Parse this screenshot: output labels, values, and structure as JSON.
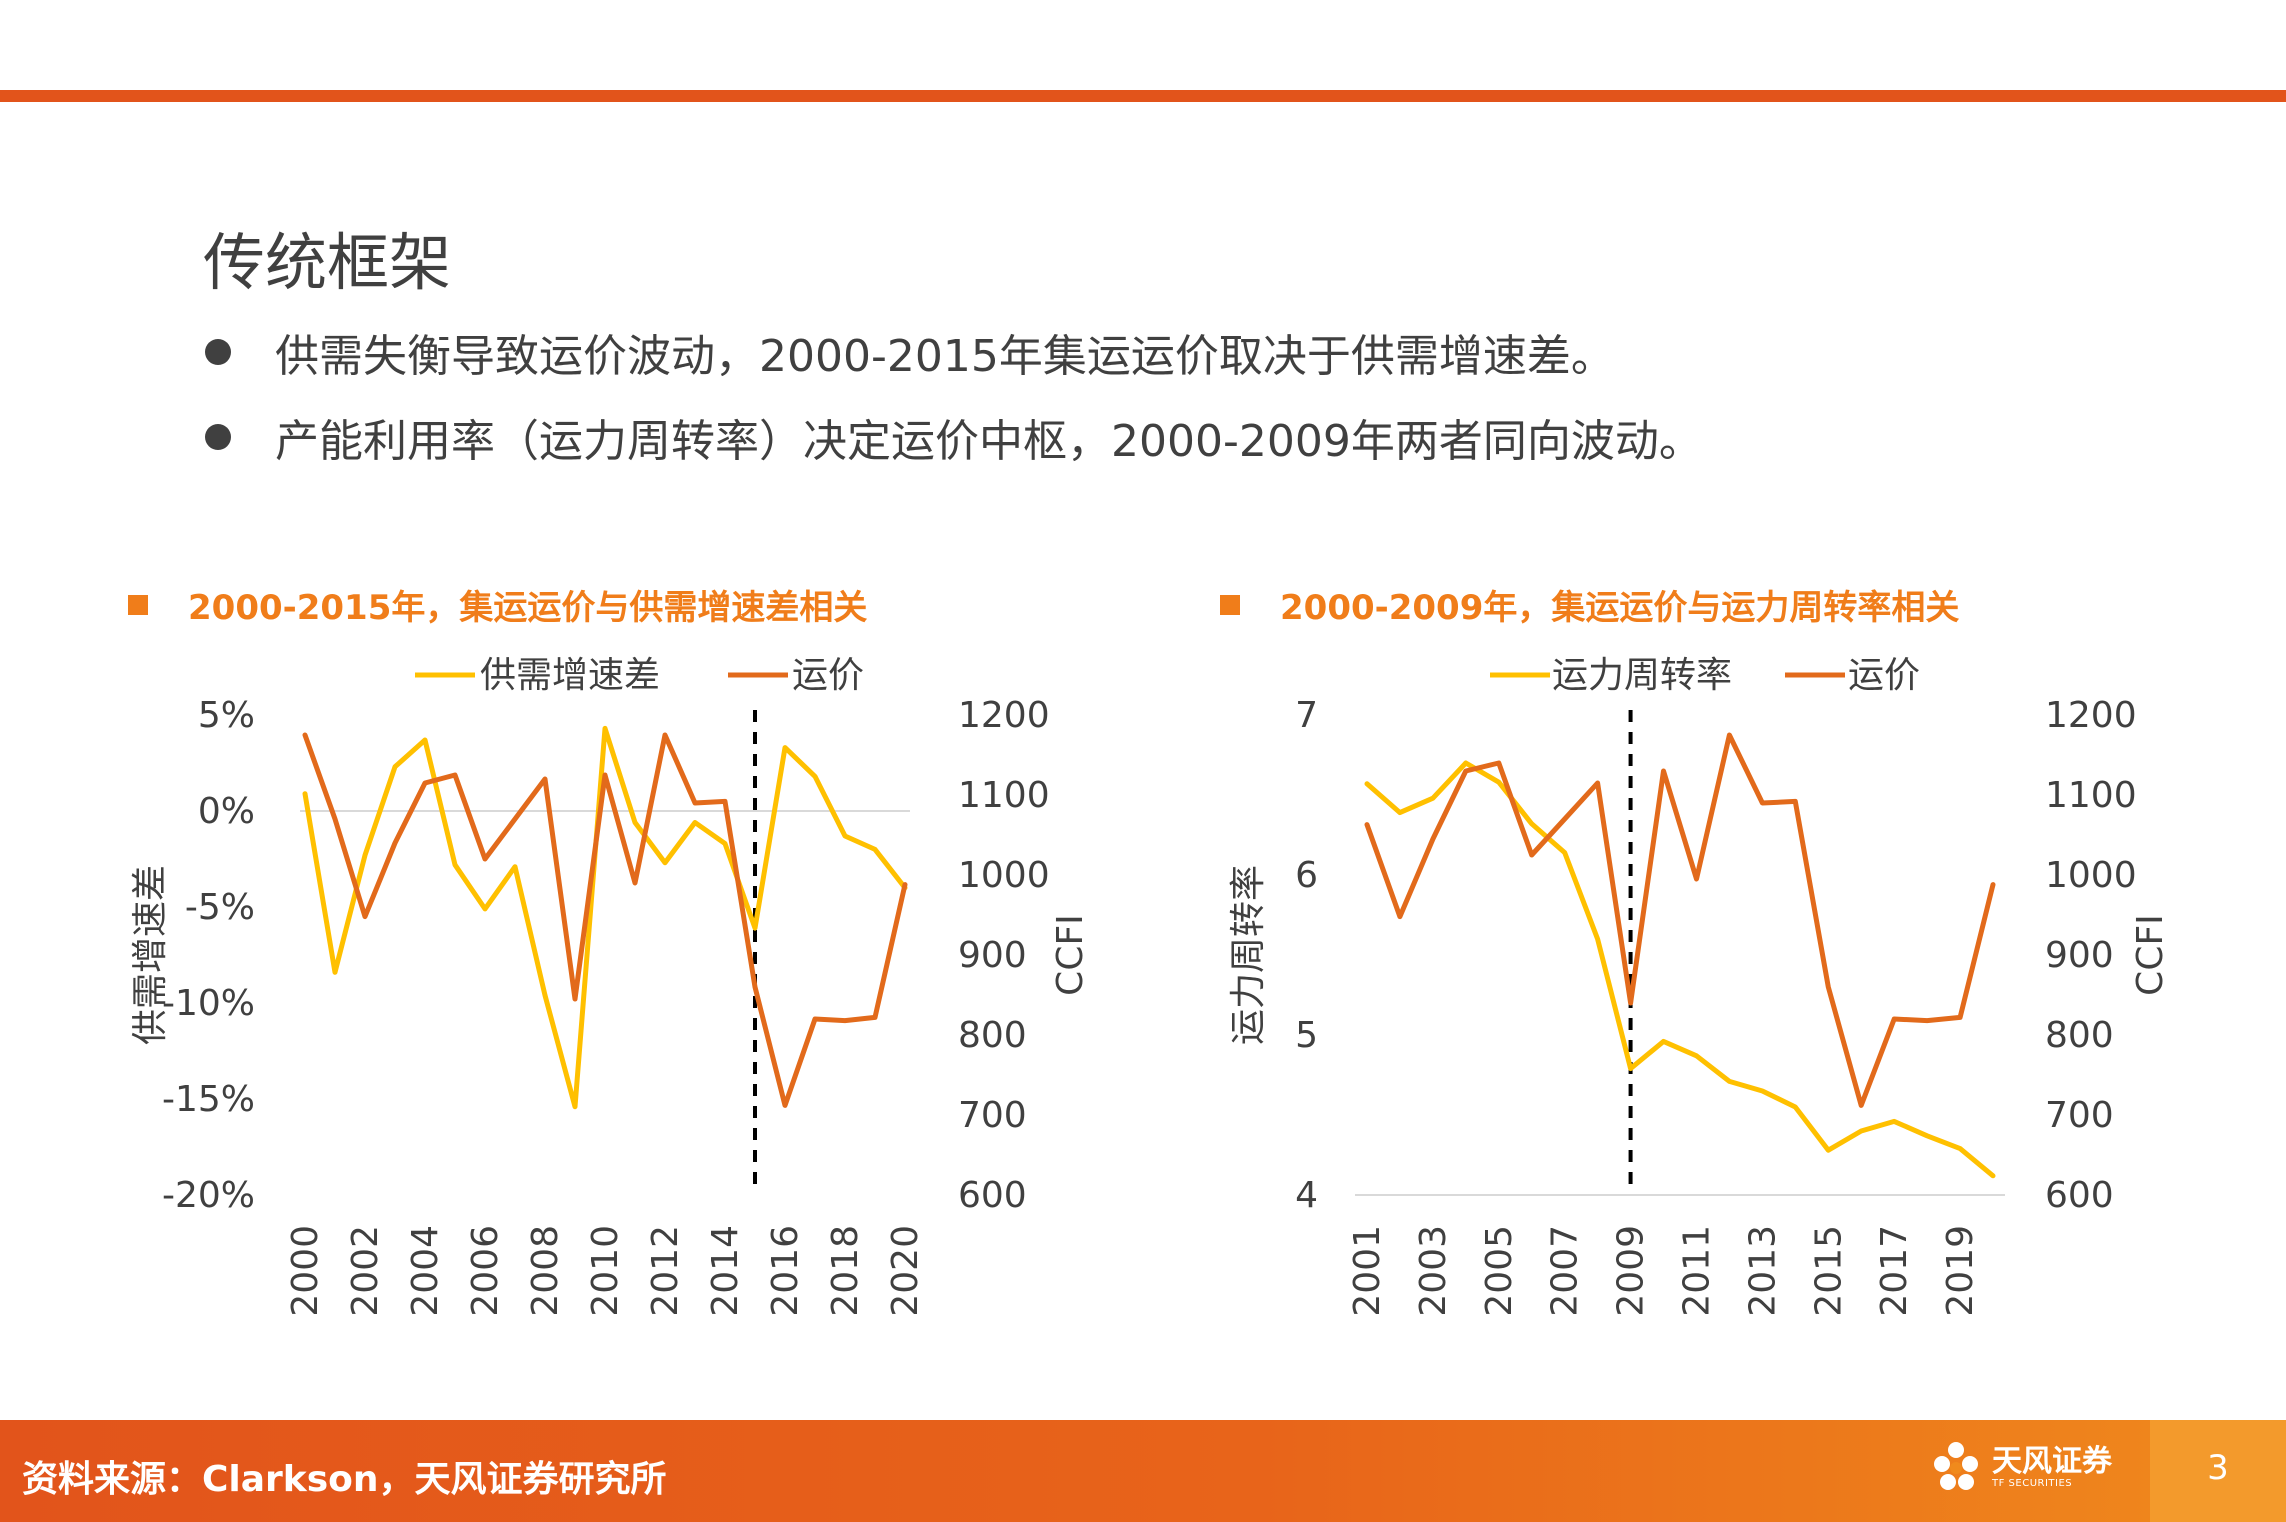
{
  "slide": {
    "title": "传统框架",
    "bullets": [
      "供需失衡导致运价波动，2000-2015年集运运价取决于供需增速差。",
      "产能利用率（运力周转率）决定运价中枢，2000-2009年两者同向波动。"
    ],
    "accent_color": "#e2541b",
    "source": "资料来源：Clarkson，天风证券研究所",
    "logo_text": "天风证券",
    "logo_subtext": "TF SECURITIES",
    "page_number": "3"
  },
  "chart_data": [
    {
      "type": "line",
      "heading": "2000-2015年，集运运价与供需增速差相关",
      "x": [
        2000,
        2001,
        2002,
        2003,
        2004,
        2005,
        2006,
        2007,
        2008,
        2009,
        2010,
        2011,
        2012,
        2013,
        2014,
        2015,
        2016,
        2017,
        2018,
        2019,
        2020
      ],
      "xticks": [
        "2000",
        "2002",
        "2004",
        "2006",
        "2008",
        "2010",
        "2012",
        "2014",
        "2016",
        "2018",
        "2020"
      ],
      "series": [
        {
          "name": "供需增速差",
          "axis": "left",
          "color": "#ffc000",
          "values": [
            0.9,
            -8.4,
            -2.3,
            2.3,
            3.7,
            -2.8,
            -5.1,
            -2.9,
            -9.6,
            -15.4,
            4.3,
            -0.6,
            -2.7,
            -0.6,
            -1.7,
            -6.1,
            3.3,
            1.8,
            -1.3,
            -2.0,
            -4.0
          ]
        },
        {
          "name": "运价",
          "axis": "right",
          "color": "#e26a1b",
          "values": [
            1175,
            1070,
            948,
            1040,
            1115,
            1125,
            1020,
            1070,
            1120,
            845,
            1125,
            990,
            1175,
            1090,
            1092,
            860,
            712,
            820,
            818,
            822,
            988
          ]
        }
      ],
      "y_left": {
        "label": "供需增速差",
        "range": [
          -20,
          5
        ],
        "ticks": [
          "5%",
          "0%",
          "-5%",
          "-10%",
          "-15%",
          "-20%"
        ],
        "tick_values": [
          5,
          0,
          -5,
          -10,
          -15,
          -20
        ]
      },
      "y_right": {
        "label": "CCFI",
        "range": [
          600,
          1200
        ],
        "ticks": [
          "1200",
          "1100",
          "1000",
          "900",
          "800",
          "700",
          "600"
        ],
        "tick_values": [
          1200,
          1100,
          1000,
          900,
          800,
          700,
          600
        ]
      },
      "dashed_marker_x": 2015,
      "legend": "top"
    },
    {
      "type": "line",
      "heading": "2000-2009年，集运运价与运力周转率相关",
      "x": [
        2001,
        2002,
        2003,
        2004,
        2005,
        2006,
        2007,
        2008,
        2009,
        2010,
        2011,
        2012,
        2013,
        2014,
        2015,
        2016,
        2017,
        2018,
        2019,
        2020
      ],
      "xticks": [
        "2001",
        "2003",
        "2005",
        "2007",
        "2009",
        "2011",
        "2013",
        "2015",
        "2017",
        "2019"
      ],
      "series": [
        {
          "name": "运力周转率",
          "axis": "left",
          "color": "#ffc000",
          "values": [
            6.57,
            6.39,
            6.48,
            6.7,
            6.58,
            6.32,
            6.14,
            5.6,
            4.79,
            4.96,
            4.87,
            4.71,
            4.65,
            4.55,
            4.28,
            4.4,
            4.46,
            4.37,
            4.29,
            4.12
          ]
        },
        {
          "name": "运价",
          "axis": "right",
          "color": "#e26a1b",
          "values": [
            1063,
            948,
            1045,
            1130,
            1140,
            1025,
            1070,
            1115,
            840,
            1130,
            995,
            1175,
            1090,
            1092,
            860,
            712,
            820,
            818,
            822,
            988
          ]
        }
      ],
      "y_left": {
        "label": "运力周转率",
        "range": [
          4,
          7
        ],
        "ticks": [
          "7",
          "6",
          "5",
          "4"
        ],
        "tick_values": [
          7,
          6,
          5,
          4
        ]
      },
      "y_right": {
        "label": "CCFI",
        "range": [
          600,
          1200
        ],
        "ticks": [
          "1200",
          "1100",
          "1000",
          "900",
          "800",
          "700",
          "600"
        ],
        "tick_values": [
          1200,
          1100,
          1000,
          900,
          800,
          700,
          600
        ]
      },
      "dashed_marker_x": 2009,
      "legend": "top"
    }
  ]
}
